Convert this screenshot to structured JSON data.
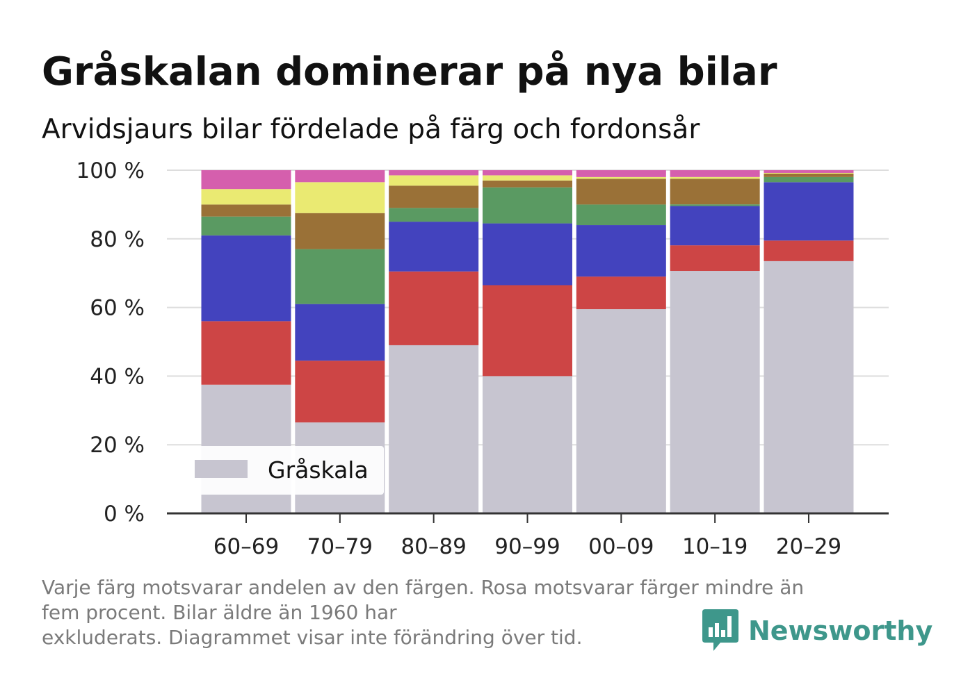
{
  "title": "Gråskalan dominerar på nya bilar",
  "subtitle": "Arvidsjaurs bilar fördelade på färg och fordonsår",
  "note_lines": [
    "Varje färg motsvarar andelen av den färgen. Rosa motsvarar färger mindre än",
    "fem procent. Bilar äldre än 1960 har",
    "exkluderats. Diagrammet visar inte förändring över tid."
  ],
  "brand": {
    "name": "Newsworthy",
    "color": "#3e978b",
    "icon": "bar-chart-speech-bubble-icon"
  },
  "chart_data": {
    "type": "bar",
    "stacked": true,
    "normalized": true,
    "categories": [
      "60–69",
      "70–79",
      "80–89",
      "90–99",
      "00–09",
      "10–19",
      "20–29"
    ],
    "y_ticks": [
      "0 %",
      "20 %",
      "40 %",
      "60 %",
      "80 %",
      "100 %"
    ],
    "ylim": [
      0,
      100
    ],
    "grid": true,
    "legend": {
      "placement": "bottom-left",
      "entries": [
        "Gråskala"
      ]
    },
    "series": [
      {
        "name": "Gråskala",
        "color": "#c7c5d0",
        "values": [
          37.5,
          26.5,
          49,
          40,
          59.5,
          71,
          73.5
        ]
      },
      {
        "color": "#cd4545",
        "values": [
          18.5,
          18,
          21.5,
          26.5,
          9.5,
          7.5,
          6
        ]
      },
      {
        "color": "#4343be",
        "values": [
          25,
          16.5,
          14.5,
          18,
          15,
          11.5,
          17
        ]
      },
      {
        "color": "#5a9a62",
        "values": [
          5.5,
          16,
          4,
          10.5,
          6,
          0.5,
          1.5
        ]
      },
      {
        "color": "#9a7137",
        "values": [
          3.5,
          10.5,
          6.5,
          2,
          7.5,
          7.5,
          1
        ]
      },
      {
        "color": "#eaea72",
        "values": [
          4.5,
          9,
          3,
          1.5,
          0.5,
          0.5,
          0.2
        ]
      },
      {
        "color": "#d55fad",
        "values": [
          5.5,
          3.5,
          1.5,
          1.5,
          2,
          2,
          0.8
        ]
      }
    ]
  }
}
